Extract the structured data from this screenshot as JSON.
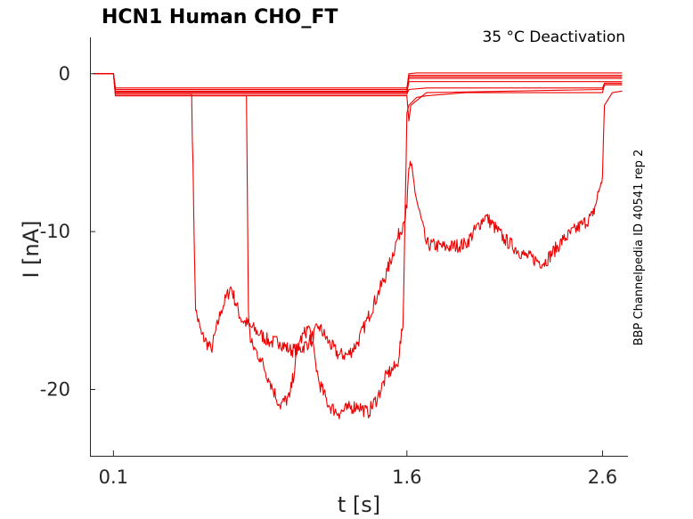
{
  "chart_data": {
    "type": "line",
    "title": "HCN1  Human  CHO_FT",
    "subtitle": "35 °C  Deactivation",
    "side_label": "BBP Channelpedia ID 40541 rep 2",
    "xlabel": "t [s]",
    "ylabel": "I [nA]",
    "xlim": [
      -0.02,
      2.73
    ],
    "ylim": [
      -24.2,
      2.3
    ],
    "xticks": [
      0.1,
      1.6,
      2.6
    ],
    "xtick_labels": [
      "0.1",
      "1.6",
      "2.6"
    ],
    "yticks": [
      0,
      -10,
      -20
    ],
    "ytick_labels": [
      "0",
      "-10",
      "-20"
    ],
    "grid": false,
    "color": "#ee0000",
    "series": [
      {
        "x": [
          0,
          0.1,
          0.11,
          1.6,
          1.61,
          1.65,
          2.6,
          2.61,
          2.7
        ],
        "y": [
          0,
          0,
          -0.9,
          -0.9,
          0,
          0.05,
          0.05,
          0.05,
          0.05
        ]
      },
      {
        "x": [
          0,
          0.1,
          0.11,
          1.6,
          1.61,
          2.6,
          2.61,
          2.7
        ],
        "y": [
          0,
          0,
          -1.0,
          -1.0,
          -0.1,
          -0.1,
          -0.1,
          -0.1
        ]
      },
      {
        "x": [
          0,
          0.1,
          0.11,
          1.6,
          1.61,
          2.6,
          2.61,
          2.7
        ],
        "y": [
          0,
          0,
          -1.1,
          -1.1,
          -0.2,
          -0.2,
          -0.2,
          -0.2
        ]
      },
      {
        "x": [
          0,
          0.1,
          0.11,
          1.6,
          1.61,
          2.6,
          2.61,
          2.7
        ],
        "y": [
          0,
          0,
          -1.15,
          -1.15,
          -0.3,
          -0.3,
          -0.3,
          -0.3
        ]
      },
      {
        "x": [
          0,
          0.1,
          0.11,
          1.6,
          1.61,
          2.6,
          2.61,
          2.7
        ],
        "y": [
          0,
          0,
          -1.2,
          -1.2,
          -0.5,
          -0.5,
          -0.5,
          -0.5
        ]
      },
      {
        "x": [
          0,
          0.1,
          0.11,
          1.6,
          1.61,
          1.7,
          2.6,
          2.61,
          2.7
        ],
        "y": [
          0,
          0,
          -1.3,
          -1.3,
          -1.0,
          -0.9,
          -0.9,
          -0.6,
          -0.6
        ]
      },
      {
        "x": [
          0,
          0.1,
          0.11,
          1.6,
          1.61,
          1.62,
          1.7,
          2.6,
          2.61,
          2.7
        ],
        "y": [
          0,
          0,
          -1.4,
          -1.4,
          -3.0,
          -2.0,
          -1.2,
          -1.0,
          -0.7,
          -0.7
        ]
      },
      {
        "x": [
          0,
          0.1,
          0.11,
          0.5,
          0.51,
          0.52,
          0.55,
          0.6,
          0.65,
          0.7,
          0.75,
          0.8,
          0.85,
          0.9,
          0.95,
          1.0,
          1.05,
          1.1,
          1.15,
          1.2,
          1.25,
          1.3,
          1.35,
          1.4,
          1.45,
          1.5,
          1.55,
          1.58,
          1.6,
          1.61,
          1.62,
          1.65,
          1.7,
          1.8,
          1.9,
          2.0,
          2.1,
          2.2,
          2.3,
          2.4,
          2.5,
          2.55,
          2.58,
          2.6,
          2.61,
          2.65,
          2.7
        ],
        "y": [
          0,
          0,
          -1.3,
          -1.3,
          -8.5,
          -15.0,
          -16.5,
          -17.5,
          -15.0,
          -13.5,
          -15.5,
          -16.0,
          -16.5,
          -17.0,
          -17.0,
          -17.5,
          -17.5,
          -17.0,
          -16.0,
          -17.0,
          -17.8,
          -17.8,
          -17.0,
          -15.5,
          -14.0,
          -12.5,
          -10.5,
          -9.5,
          -8.5,
          -6.0,
          -5.8,
          -8.0,
          -10.8,
          -11.0,
          -10.8,
          -9.0,
          -10.5,
          -11.5,
          -12.0,
          -10.5,
          -9.5,
          -9.0,
          -7.5,
          -6.5,
          -2.0,
          -1.2,
          -1.1
        ]
      },
      {
        "x": [
          0,
          0.1,
          0.11,
          0.78,
          0.79,
          0.8,
          0.85,
          0.9,
          0.95,
          1.0,
          1.05,
          1.1,
          1.15,
          1.2,
          1.25,
          1.3,
          1.35,
          1.4,
          1.45,
          1.5,
          1.55,
          1.58,
          1.6,
          1.61,
          1.65,
          1.7,
          1.8,
          1.9,
          2.0,
          2.1,
          2.2,
          2.3,
          2.4,
          2.5,
          2.6,
          2.61,
          2.7
        ],
        "y": [
          0,
          0,
          -1.4,
          -1.4,
          -15.0,
          -17.0,
          -18.0,
          -19.5,
          -21.0,
          -20.5,
          -17.0,
          -16.0,
          -19.5,
          -21.0,
          -21.5,
          -21.2,
          -21.0,
          -21.5,
          -20.5,
          -19.0,
          -18.5,
          -16.0,
          -2.5,
          -2.0,
          -1.5,
          -1.4,
          -1.3,
          -1.2,
          -1.2,
          -1.2,
          -1.2,
          -1.2,
          -1.2,
          -1.2,
          -1.2,
          -0.7,
          -0.7
        ]
      }
    ]
  }
}
